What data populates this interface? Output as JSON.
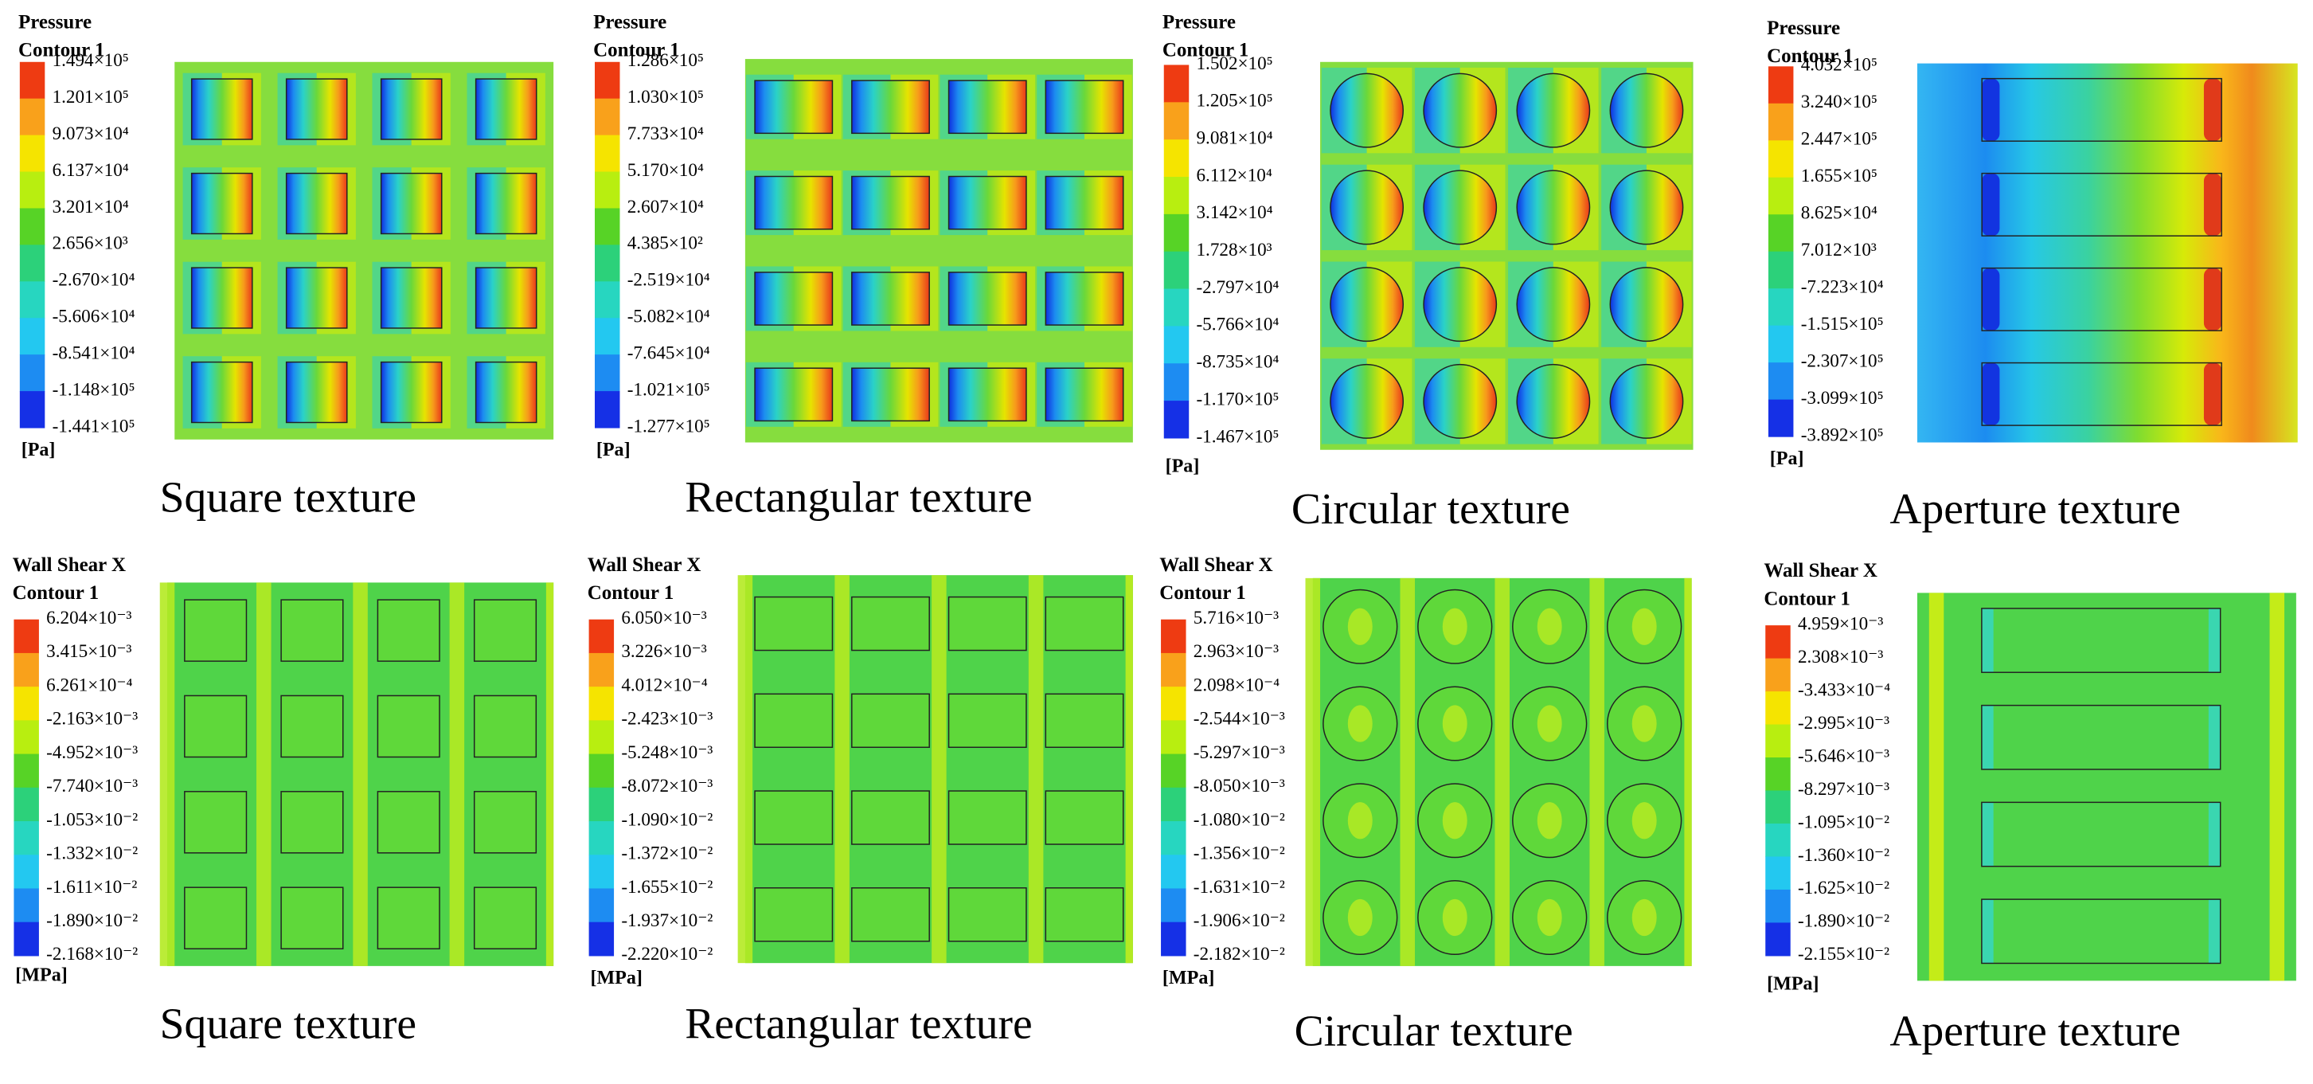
{
  "panels": [
    {
      "title": [
        "Pressure",
        "Contour 1"
      ],
      "labels": [
        "1.494×10⁵",
        "1.201×10⁵",
        "9.073×10⁴",
        "6.137×10⁴",
        "3.201×10⁴",
        "2.656×10³",
        "-2.670×10⁴",
        "-5.606×10⁴",
        "-8.541×10⁴",
        "-1.148×10⁵",
        "-1.441×10⁵"
      ],
      "unit": "[Pa]",
      "caption": "Square texture"
    },
    {
      "title": [
        "Pressure",
        "Contour 1"
      ],
      "labels": [
        "1.286×10⁵",
        "1.030×10⁵",
        "7.733×10⁴",
        "5.170×10⁴",
        "2.607×10⁴",
        "4.385×10²",
        "-2.519×10⁴",
        "-5.082×10⁴",
        "-7.645×10⁴",
        "-1.021×10⁵",
        "-1.277×10⁵"
      ],
      "unit": "[Pa]",
      "caption": "Rectangular texture"
    },
    {
      "title": [
        "Pressure",
        "Contour 1"
      ],
      "labels": [
        "1.502×10⁵",
        "1.205×10⁵",
        "9.081×10⁴",
        "6.112×10⁴",
        "3.142×10⁴",
        "1.728×10³",
        "-2.797×10⁴",
        "-5.766×10⁴",
        "-8.735×10⁴",
        "-1.170×10⁵",
        "-1.467×10⁵"
      ],
      "unit": "[Pa]",
      "caption": "Circular texture"
    },
    {
      "title": [
        "Pressure",
        "Contour 1"
      ],
      "labels": [
        "4.032×10⁵",
        "3.240×10⁵",
        "2.447×10⁵",
        "1.655×10⁵",
        "8.625×10⁴",
        "7.012×10³",
        "-7.223×10⁴",
        "-1.515×10⁵",
        "-2.307×10⁵",
        "-3.099×10⁵",
        "-3.892×10⁵"
      ],
      "unit": "[Pa]",
      "caption": "Aperture texture"
    },
    {
      "title": [
        "Wall Shear X",
        "Contour 1"
      ],
      "labels": [
        "6.204×10⁻³",
        "3.415×10⁻³",
        "6.261×10⁻⁴",
        "-2.163×10⁻³",
        "-4.952×10⁻³",
        "-7.740×10⁻³",
        "-1.053×10⁻²",
        "-1.332×10⁻²",
        "-1.611×10⁻²",
        "-1.890×10⁻²",
        "-2.168×10⁻²"
      ],
      "unit": "[MPa]",
      "caption": "Square texture"
    },
    {
      "title": [
        "Wall Shear X",
        "Contour 1"
      ],
      "labels": [
        "6.050×10⁻³",
        "3.226×10⁻³",
        "4.012×10⁻⁴",
        "-2.423×10⁻³",
        "-5.248×10⁻³",
        "-8.072×10⁻³",
        "-1.090×10⁻²",
        "-1.372×10⁻²",
        "-1.655×10⁻²",
        "-1.937×10⁻²",
        "-2.220×10⁻²"
      ],
      "unit": "[MPa]",
      "caption": "Rectangular texture"
    },
    {
      "title": [
        "Wall Shear X",
        "Contour 1"
      ],
      "labels": [
        "5.716×10⁻³",
        "2.963×10⁻³",
        "2.098×10⁻⁴",
        "-2.544×10⁻³",
        "-5.297×10⁻³",
        "-8.050×10⁻³",
        "-1.080×10⁻²",
        "-1.356×10⁻²",
        "-1.631×10⁻²",
        "-1.906×10⁻²",
        "-2.182×10⁻²"
      ],
      "unit": "[MPa]",
      "caption": "Circular texture"
    },
    {
      "title": [
        "Wall Shear X",
        "Contour 1"
      ],
      "labels": [
        "4.959×10⁻³",
        "2.308×10⁻³",
        "-3.433×10⁻⁴",
        "-2.995×10⁻³",
        "-5.646×10⁻³",
        "-8.297×10⁻³",
        "-1.095×10⁻²",
        "-1.360×10⁻²",
        "-1.625×10⁻²",
        "-1.890×10⁻²",
        "-2.155×10⁻²"
      ],
      "unit": "[MPa]",
      "caption": "Aperture texture"
    }
  ]
}
